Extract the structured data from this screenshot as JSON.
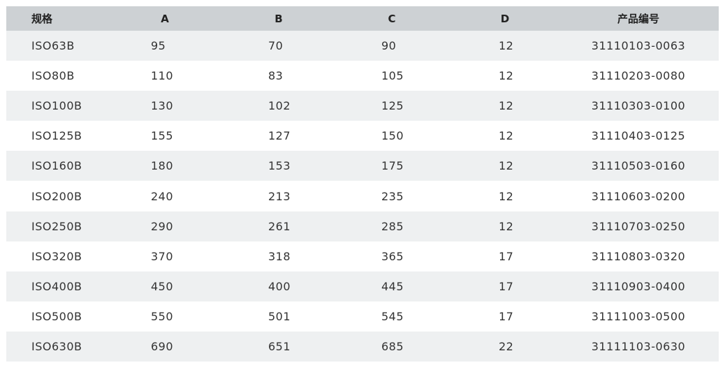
{
  "table": {
    "header": [
      "规格",
      "A",
      "B",
      "C",
      "D",
      "产品编号"
    ],
    "rows": [
      [
        "ISO63B",
        "95",
        "70",
        "90",
        "12",
        "31110103-0063"
      ],
      [
        "ISO80B",
        "110",
        "83",
        "105",
        "12",
        "31110203-0080"
      ],
      [
        "ISO100B",
        "130",
        "102",
        "125",
        "12",
        "31110303-0100"
      ],
      [
        "ISO125B",
        "155",
        "127",
        "150",
        "12",
        "31110403-0125"
      ],
      [
        "ISO160B",
        "180",
        "153",
        "175",
        "12",
        "31110503-0160"
      ],
      [
        "ISO200B",
        "240",
        "213",
        "235",
        "12",
        "31110603-0200"
      ],
      [
        "ISO250B",
        "290",
        "261",
        "285",
        "12",
        "31110703-0250"
      ],
      [
        "ISO320B",
        "370",
        "318",
        "365",
        "17",
        "31110803-0320"
      ],
      [
        "ISO400B",
        "450",
        "400",
        "445",
        "17",
        "31110903-0400"
      ],
      [
        "ISO500B",
        "550",
        "501",
        "545",
        "17",
        "31111003-0500"
      ],
      [
        "ISO630B",
        "690",
        "651",
        "685",
        "22",
        "31111103-0630"
      ]
    ]
  }
}
